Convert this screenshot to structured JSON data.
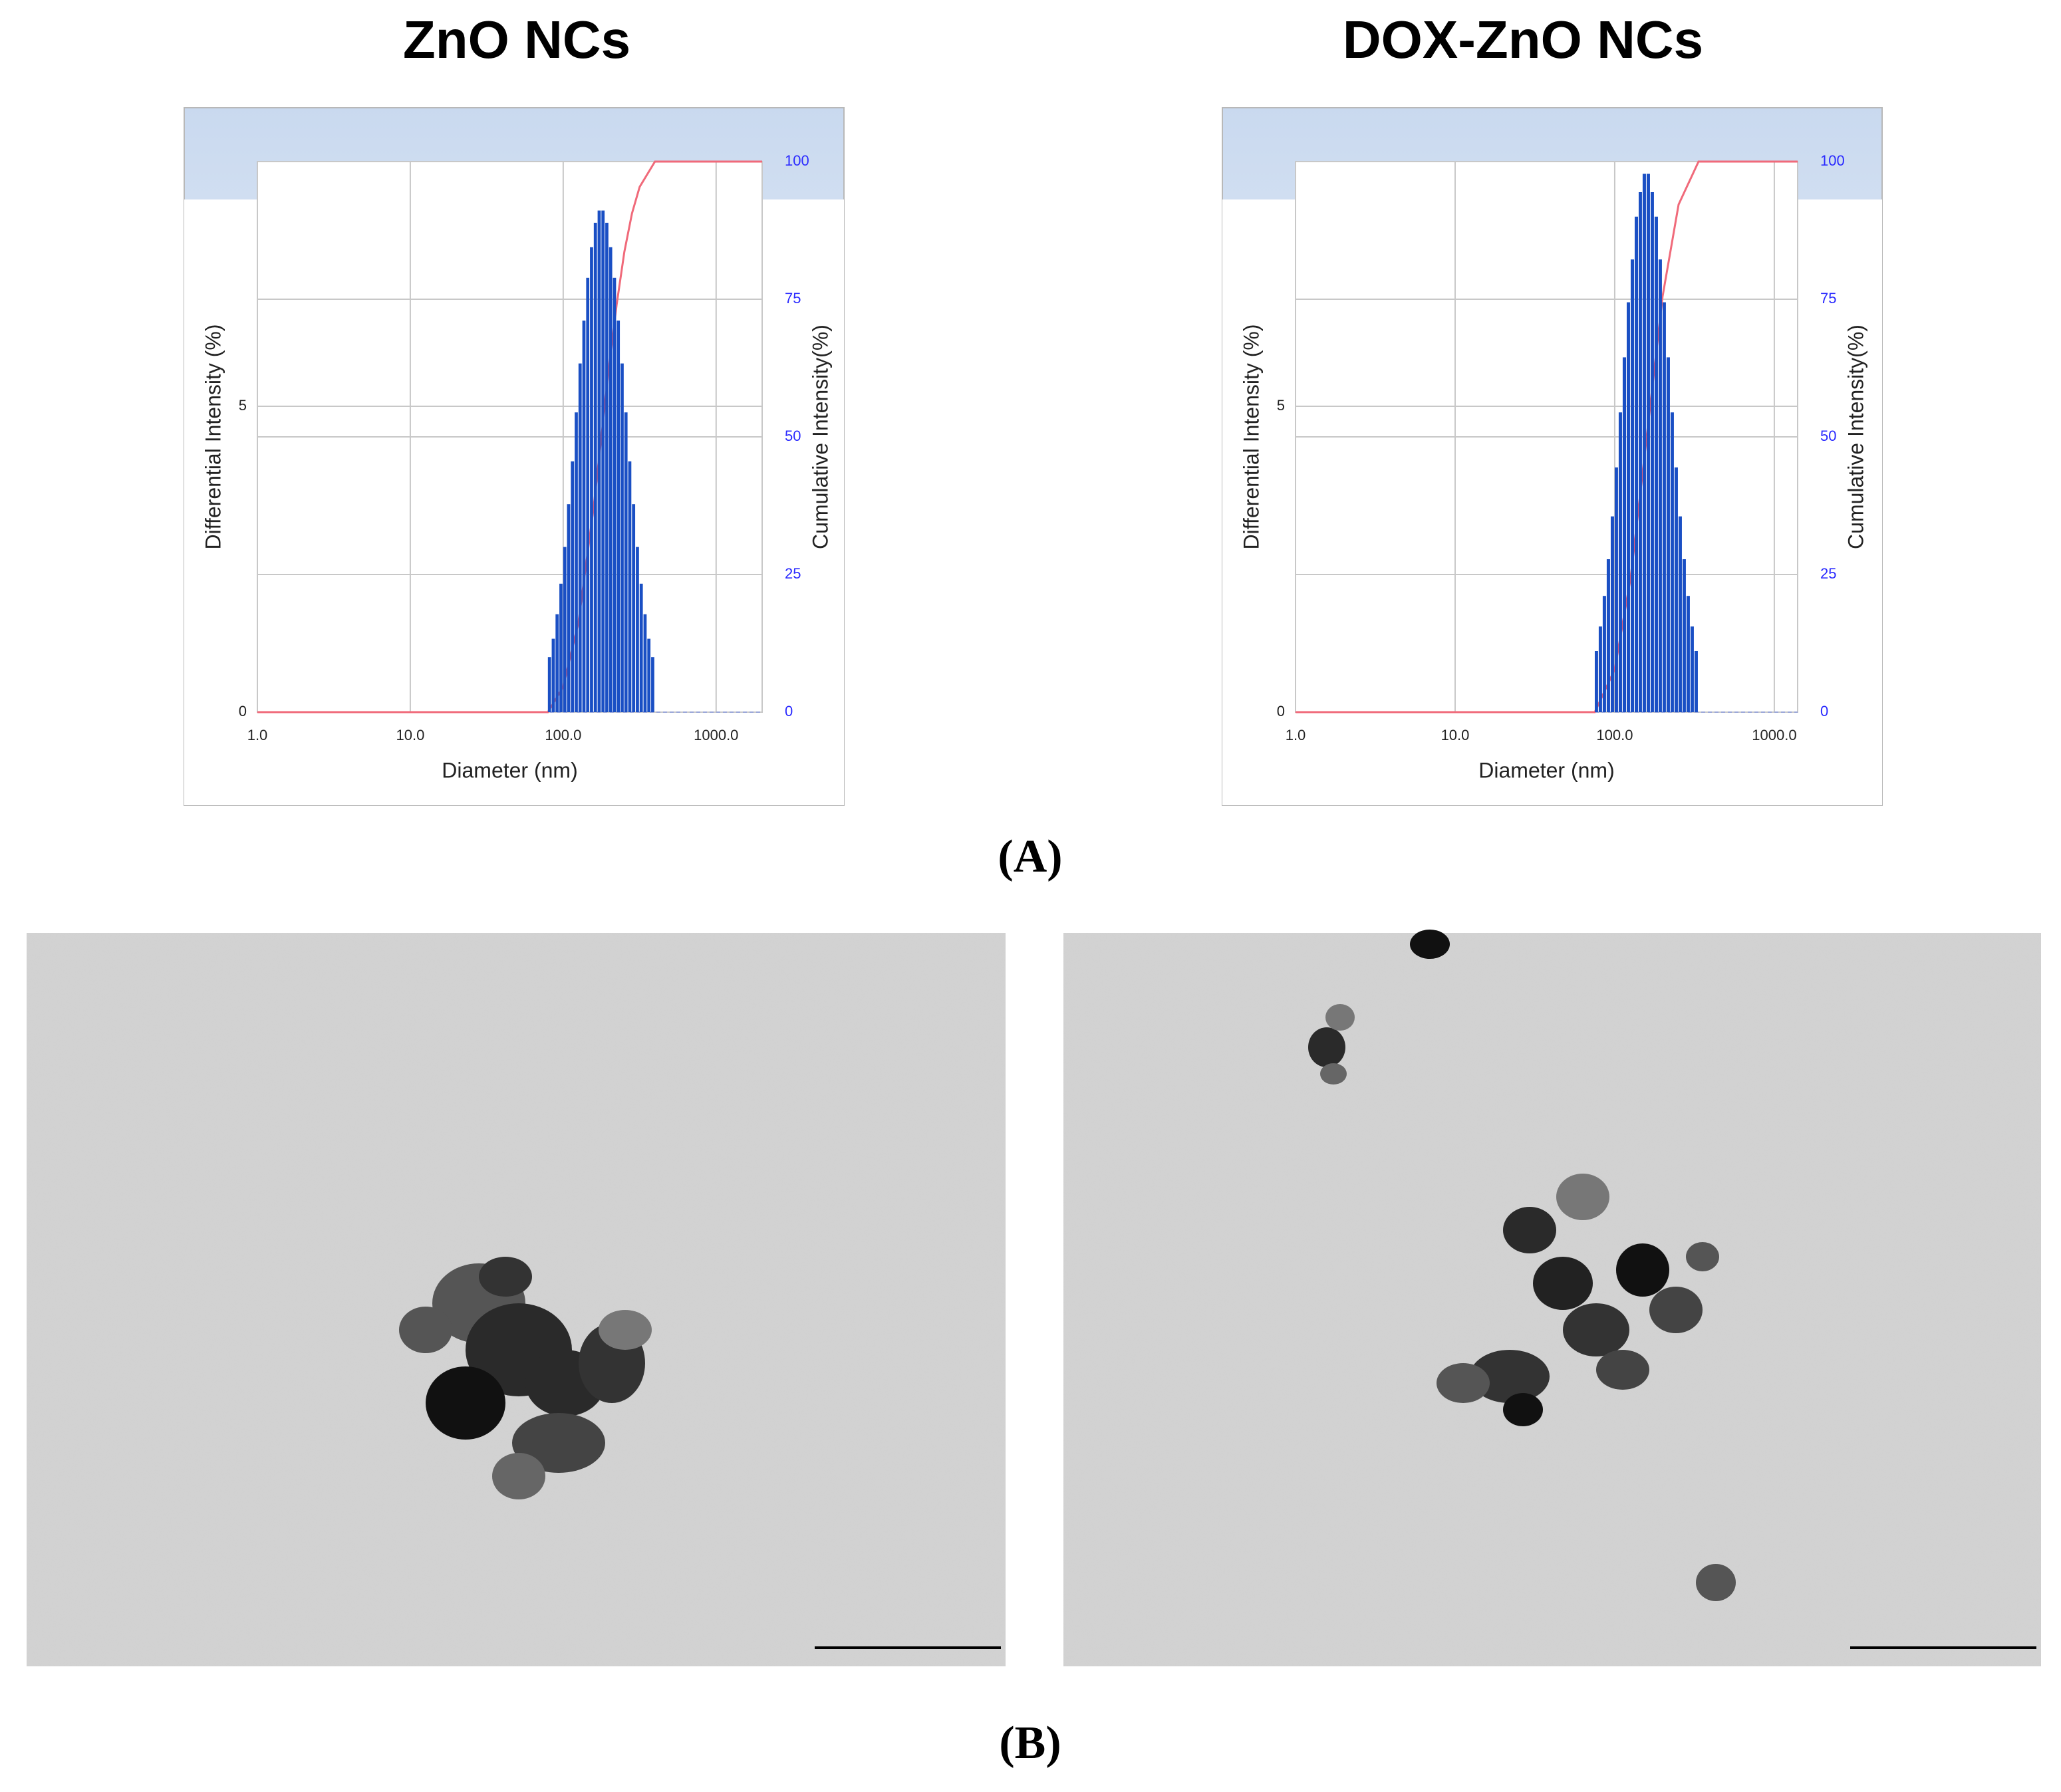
{
  "chart_data": [
    {
      "type": "histogram",
      "title": "ZnO NCs",
      "x_label": "Diameter (nm)",
      "y_label": "Differential Intensity (%)",
      "y2_label": "Cumulative Intensity(%)",
      "log_x": true,
      "grid": true,
      "color": "#1a4fc4",
      "bins": [
        79.4,
        84.1,
        89.1,
        94.4,
        100,
        105.9,
        112.2,
        118.9,
        125.9,
        133.4,
        141.3,
        149.6,
        158.5,
        167.9,
        177.8,
        188.4,
        199.5,
        211.3,
        223.9,
        237.1,
        251.2,
        266.1,
        281.8,
        298.5,
        316.2,
        335.0,
        354.8,
        375.8,
        398.1
      ],
      "values": [
        0.9,
        1.2,
        1.6,
        2.1,
        2.7,
        3.4,
        4.1,
        4.9,
        5.7,
        6.4,
        7.1,
        7.6,
        8.0,
        8.2,
        8.2,
        8.0,
        7.6,
        7.1,
        6.4,
        5.7,
        4.9,
        4.1,
        3.4,
        2.7,
        2.1,
        1.6,
        1.2,
        0.9
      ],
      "cumulative": {
        "axis": "y2",
        "color": "#f06a7a",
        "x": [
          1,
          79.4,
          100,
          125.9,
          158.5,
          177.8,
          199.5,
          223.9,
          251.2,
          281.8,
          316.2,
          398.1,
          2000
        ],
        "values": [
          0,
          0,
          4.6,
          16.4,
          37.4,
          50,
          62.6,
          74.1,
          83.6,
          90.6,
          95.4,
          100,
          100
        ]
      },
      "xlim": [
        1,
        2000
      ],
      "xticks": [
        {
          "value": 1,
          "label": "1.0"
        },
        {
          "value": 10,
          "label": "10.0"
        },
        {
          "value": 100,
          "label": "100.0"
        },
        {
          "value": 1000,
          "label": "1000.0"
        }
      ],
      "ylim": [
        0,
        9
      ],
      "yticks": [
        0,
        5
      ],
      "y2lim": [
        0,
        100
      ],
      "y2ticks": [
        0,
        25,
        50,
        75,
        100
      ]
    },
    {
      "type": "histogram",
      "title": "DOX-ZnO NCs",
      "x_label": "Diameter (nm)",
      "y_label": "Differential Intensity (%)",
      "y2_label": "Cumulative Intensity(%)",
      "log_x": true,
      "grid": true,
      "color": "#1a4fc4",
      "bins": [
        75.0,
        79.4,
        84.1,
        89.1,
        94.4,
        100,
        105.9,
        112.2,
        118.9,
        125.9,
        133.4,
        141.3,
        149.6,
        158.5,
        167.9,
        177.8,
        188.4,
        199.5,
        211.3,
        223.9,
        237.1,
        251.2,
        266.1,
        281.8,
        298.5,
        316.2,
        335.0
      ],
      "values": [
        1.0,
        1.4,
        1.9,
        2.5,
        3.2,
        4.0,
        4.9,
        5.8,
        6.7,
        7.4,
        8.1,
        8.5,
        8.8,
        8.8,
        8.5,
        8.1,
        7.4,
        6.7,
        5.8,
        4.9,
        4.0,
        3.2,
        2.5,
        1.9,
        1.4,
        1.0
      ],
      "cumulative": {
        "axis": "y2",
        "color": "#f06a7a",
        "x": [
          1,
          75,
          100,
          125.9,
          158.5,
          199.5,
          251.2,
          335,
          1400
        ],
        "values": [
          0,
          0,
          7.8,
          24.5,
          50,
          75.5,
          92.2,
          100,
          100
        ]
      },
      "xlim": [
        1,
        1400
      ],
      "xticks": [
        {
          "value": 1,
          "label": "1.0"
        },
        {
          "value": 10,
          "label": "10.0"
        },
        {
          "value": 100,
          "label": "100.0"
        },
        {
          "value": 1000,
          "label": "1000.0"
        }
      ],
      "ylim": [
        0,
        9
      ],
      "yticks": [
        0,
        5
      ],
      "y2lim": [
        0,
        100
      ],
      "y2ticks": [
        0,
        25,
        50,
        75,
        100
      ]
    }
  ],
  "panel_labels": [
    "(A)",
    "(B)"
  ]
}
